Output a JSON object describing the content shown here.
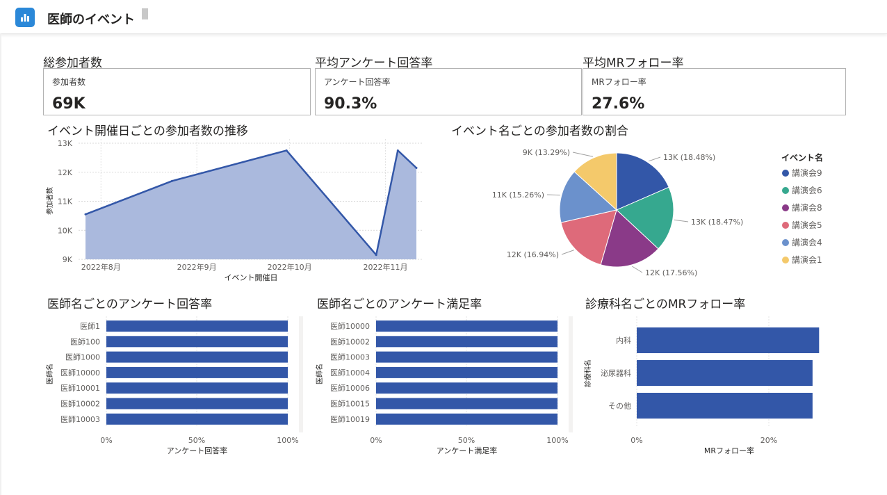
{
  "header": {
    "title": "医師のイベント"
  },
  "kpis": [
    {
      "title": "総参加者数",
      "label": "参加者数",
      "value": "69K"
    },
    {
      "title": "平均アンケート回答率",
      "label": "アンケート回答率",
      "value": "90.3%"
    },
    {
      "title": "平均MRフォロー率",
      "label": "MRフォロー率",
      "value": "27.6%"
    }
  ],
  "chart_titles": {
    "trend": "イベント開催日ごとの参加者数の推移",
    "pie": "イベント名ごとの参加者数の割合",
    "bar1": "医師名ごとのアンケート回答率",
    "bar2": "医師名ごとのアンケート満足率",
    "bar3": "診療科名ごとのMRフォロー率"
  },
  "chart_data": [
    {
      "id": "trend",
      "type": "area",
      "title": "イベント開催日ごとの参加者数の推移",
      "xlabel": "イベント開催日",
      "ylabel": "参加者数",
      "x": [
        "2022-07-27",
        "2022-08-24",
        "2022-09-30",
        "2022-10-29",
        "2022-11-05",
        "2022-11-11"
      ],
      "y": [
        10550,
        11700,
        12750,
        9150,
        12750,
        12150
      ],
      "xticks": [
        "2022年8月",
        "2022年9月",
        "2022年10月",
        "2022年11月"
      ],
      "yticks": [
        "9K",
        "10K",
        "11K",
        "12K",
        "13K"
      ],
      "ylim": [
        9000,
        13000
      ],
      "color": "#3357a8",
      "fill": "#aab9dd"
    },
    {
      "id": "pie",
      "type": "pie",
      "title": "イベント名ごとの参加者数の割合",
      "legend_title": "イベント名",
      "legend_position": "right",
      "slices": [
        {
          "name": "講演会9",
          "label": "13K (18.48%)",
          "value": 18.48,
          "color": "#3357a8"
        },
        {
          "name": "講演会6",
          "label": "13K (18.47%)",
          "value": 18.47,
          "color": "#36a88f"
        },
        {
          "name": "講演会8",
          "label": "12K (17.56%)",
          "value": 17.56,
          "color": "#8a3a88"
        },
        {
          "name": "講演会5",
          "label": "12K (16.94%)",
          "value": 16.94,
          "color": "#de6a7a"
        },
        {
          "name": "講演会4",
          "label": "11K (15.26%)",
          "value": 15.26,
          "color": "#6b91cc"
        },
        {
          "name": "講演会1",
          "label": "9K (13.29%)",
          "value": 13.29,
          "color": "#f4c96b"
        }
      ]
    },
    {
      "id": "bar1",
      "type": "bar",
      "orientation": "horizontal",
      "title": "医師名ごとのアンケート回答率",
      "xlabel": "アンケート回答率",
      "ylabel": "医師名",
      "categories": [
        "医師1",
        "医師100",
        "医師1000",
        "医師10000",
        "医師10001",
        "医師10002",
        "医師10003"
      ],
      "values": [
        100,
        100,
        100,
        100,
        100,
        100,
        100
      ],
      "xticks": [
        "0%",
        "50%",
        "100%"
      ],
      "xlim": [
        0,
        100
      ],
      "color": "#3357a8"
    },
    {
      "id": "bar2",
      "type": "bar",
      "orientation": "horizontal",
      "title": "医師名ごとのアンケート満足率",
      "xlabel": "アンケート満足率",
      "ylabel": "医師名",
      "categories": [
        "医師10000",
        "医師10002",
        "医師10003",
        "医師10004",
        "医師10006",
        "医師10015",
        "医師10019"
      ],
      "values": [
        100,
        100,
        100,
        100,
        100,
        100,
        100
      ],
      "xticks": [
        "0%",
        "50%",
        "100%"
      ],
      "xlim": [
        0,
        100
      ],
      "color": "#3357a8"
    },
    {
      "id": "bar3",
      "type": "bar",
      "orientation": "horizontal",
      "title": "診療科名ごとのMRフォロー率",
      "xlabel": "MRフォロー率",
      "ylabel": "診療科名",
      "categories": [
        "内科",
        "泌尿器科",
        "その他"
      ],
      "values": [
        28,
        27,
        27
      ],
      "xticks": [
        "0%",
        "20%"
      ],
      "xlim": [
        0,
        28.4
      ],
      "color": "#3357a8"
    }
  ]
}
